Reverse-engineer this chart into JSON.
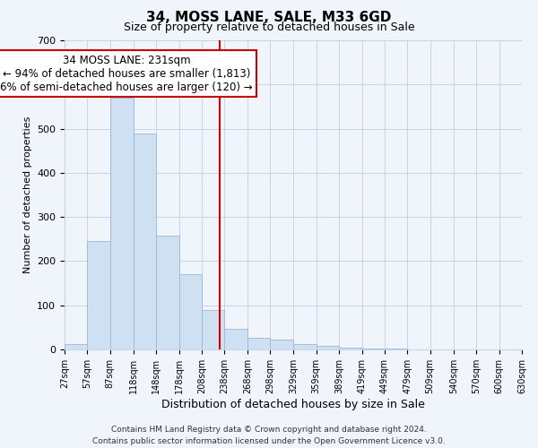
{
  "title": "34, MOSS LANE, SALE, M33 6GD",
  "subtitle": "Size of property relative to detached houses in Sale",
  "xlabel": "Distribution of detached houses by size in Sale",
  "ylabel": "Number of detached properties",
  "bin_edges": [
    27,
    57,
    87,
    118,
    148,
    178,
    208,
    238,
    268,
    298,
    329,
    359,
    389,
    419,
    449,
    479,
    509,
    540,
    570,
    600,
    630
  ],
  "bar_heights": [
    12,
    245,
    570,
    490,
    258,
    170,
    90,
    47,
    27,
    22,
    12,
    8,
    5,
    2,
    3,
    1,
    0,
    1,
    0,
    0
  ],
  "bar_color": "#cfe0f3",
  "bar_edge_color": "#9ab8d8",
  "property_value": 231,
  "marker_line_color": "#cc0000",
  "annotation_line1": "34 MOSS LANE: 231sqm",
  "annotation_line2": "← 94% of detached houses are smaller (1,813)",
  "annotation_line3": "6% of semi-detached houses are larger (120) →",
  "annotation_box_edge_color": "#cc0000",
  "annotation_box_bg": "#ffffff",
  "ylim": [
    0,
    700
  ],
  "yticks": [
    0,
    100,
    200,
    300,
    400,
    500,
    600,
    700
  ],
  "tick_labels": [
    "27sqm",
    "57sqm",
    "87sqm",
    "118sqm",
    "148sqm",
    "178sqm",
    "208sqm",
    "238sqm",
    "268sqm",
    "298sqm",
    "329sqm",
    "359sqm",
    "389sqm",
    "419sqm",
    "449sqm",
    "479sqm",
    "509sqm",
    "540sqm",
    "570sqm",
    "600sqm",
    "630sqm"
  ],
  "footer_text": "Contains HM Land Registry data © Crown copyright and database right 2024.\nContains public sector information licensed under the Open Government Licence v3.0.",
  "background_color": "#f0f4fb",
  "plot_bg_color": "#f0f4fb",
  "grid_color": "#c8d4e8",
  "title_fontsize": 11,
  "subtitle_fontsize": 9,
  "xlabel_fontsize": 9,
  "ylabel_fontsize": 8,
  "tick_fontsize": 7,
  "ytick_fontsize": 8,
  "footer_fontsize": 6.5,
  "ann_fontsize": 8.5
}
